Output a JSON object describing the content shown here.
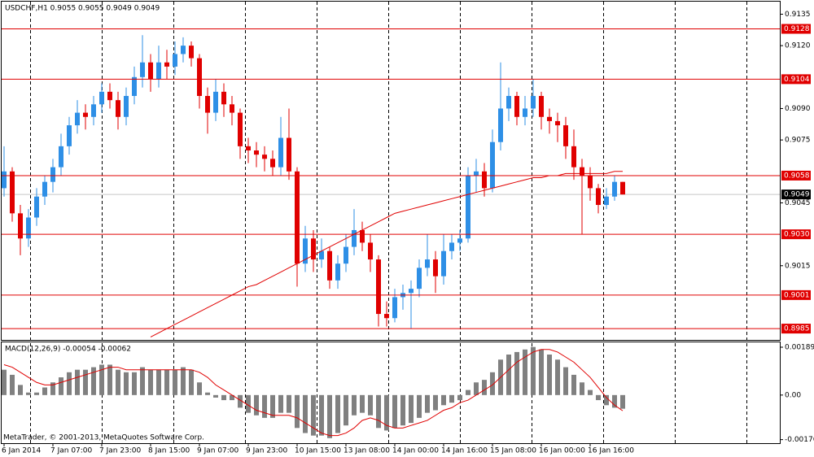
{
  "chart_data": [
    {
      "type": "candlestick",
      "title": "USDCHF,H1  0.9055 0.9055 0.9049 0.9049",
      "categories": [
        "6 Jan 2014",
        null,
        null,
        null,
        null,
        null,
        "7 Jan 07:00",
        null,
        null,
        null,
        null,
        null,
        "7 Jan 23:00",
        null,
        null,
        null,
        null,
        null,
        "8 Jan 15:00",
        null,
        null,
        null,
        null,
        null,
        "9 Jan 07:00",
        null,
        null,
        null,
        null,
        null,
        "9 Jan 23:00",
        null,
        null,
        null,
        null,
        null,
        "10 Jan 15:00",
        null,
        null,
        null,
        null,
        null,
        "13 Jan 08:00",
        null,
        null,
        null,
        null,
        null,
        "14 Jan 00:00",
        null,
        null,
        null,
        null,
        null,
        "14 Jan 16:00",
        null,
        null,
        null,
        null,
        null,
        "15 Jan 08:00",
        null,
        null,
        null,
        null,
        null,
        "16 Jan 00:00",
        null,
        null,
        null,
        null,
        null,
        "16 Jan 16:00",
        null,
        null,
        null,
        null
      ],
      "candles": [
        [
          0.9052,
          0.9072,
          0.9048,
          0.906
        ],
        [
          0.906,
          0.9062,
          0.9036,
          0.904
        ],
        [
          0.904,
          0.9044,
          0.902,
          0.9028
        ],
        [
          0.9028,
          0.9042,
          0.9024,
          0.9038
        ],
        [
          0.9038,
          0.9052,
          0.9034,
          0.9048
        ],
        [
          0.9048,
          0.9058,
          0.9044,
          0.9055
        ],
        [
          0.9055,
          0.9066,
          0.905,
          0.9062
        ],
        [
          0.9062,
          0.9078,
          0.9058,
          0.9072
        ],
        [
          0.9072,
          0.9086,
          0.9068,
          0.9082
        ],
        [
          0.9082,
          0.9094,
          0.9078,
          0.9088
        ],
        [
          0.9088,
          0.9092,
          0.908,
          0.9086
        ],
        [
          0.9086,
          0.9096,
          0.9082,
          0.9092
        ],
        [
          0.9092,
          0.9102,
          0.9088,
          0.9098
        ],
        [
          0.9098,
          0.9102,
          0.909,
          0.9094
        ],
        [
          0.9094,
          0.9098,
          0.908,
          0.9086
        ],
        [
          0.9086,
          0.91,
          0.9082,
          0.9096
        ],
        [
          0.9096,
          0.911,
          0.9092,
          0.9105
        ],
        [
          0.9105,
          0.9125,
          0.91,
          0.9112
        ],
        [
          0.9112,
          0.9116,
          0.9098,
          0.9104
        ],
        [
          0.9104,
          0.912,
          0.91,
          0.9112
        ],
        [
          0.9112,
          0.9118,
          0.9104,
          0.911
        ],
        [
          0.911,
          0.9122,
          0.9106,
          0.9116
        ],
        [
          0.9116,
          0.9124,
          0.9112,
          0.912
        ],
        [
          0.912,
          0.9122,
          0.911,
          0.9114
        ],
        [
          0.9114,
          0.9116,
          0.909,
          0.9096
        ],
        [
          0.9096,
          0.91,
          0.9078,
          0.9088
        ],
        [
          0.9088,
          0.9104,
          0.9084,
          0.9098
        ],
        [
          0.9098,
          0.9102,
          0.9086,
          0.9092
        ],
        [
          0.9092,
          0.9096,
          0.9082,
          0.9088
        ],
        [
          0.9088,
          0.909,
          0.9066,
          0.9072
        ],
        [
          0.9072,
          0.9076,
          0.9064,
          0.907
        ],
        [
          0.907,
          0.9074,
          0.9062,
          0.9068
        ],
        [
          0.9068,
          0.9072,
          0.906,
          0.9066
        ],
        [
          0.9066,
          0.907,
          0.9058,
          0.9062
        ],
        [
          0.9062,
          0.9086,
          0.9058,
          0.9076
        ],
        [
          0.9076,
          0.909,
          0.9056,
          0.906
        ],
        [
          0.906,
          0.9062,
          0.9005,
          0.9016
        ],
        [
          0.9016,
          0.9034,
          0.9012,
          0.9028
        ],
        [
          0.9028,
          0.9032,
          0.9012,
          0.9018
        ],
        [
          0.9018,
          0.9028,
          0.9014,
          0.9022
        ],
        [
          0.9022,
          0.9024,
          0.9004,
          0.9008
        ],
        [
          0.9008,
          0.902,
          0.9004,
          0.9016
        ],
        [
          0.9016,
          0.903,
          0.9012,
          0.9024
        ],
        [
          0.9024,
          0.9042,
          0.902,
          0.9032
        ],
        [
          0.9032,
          0.9036,
          0.9022,
          0.9026
        ],
        [
          0.9026,
          0.903,
          0.9012,
          0.9018
        ],
        [
          0.9018,
          0.902,
          0.8986,
          0.8992
        ],
        [
          0.8992,
          0.8998,
          0.8986,
          0.899
        ],
        [
          0.899,
          0.9004,
          0.8988,
          0.9
        ],
        [
          0.9,
          0.9006,
          0.8994,
          0.9002
        ],
        [
          0.9002,
          0.9008,
          0.8985,
          0.9004
        ],
        [
          0.9004,
          0.9018,
          0.9,
          0.9014
        ],
        [
          0.9014,
          0.903,
          0.901,
          0.9018
        ],
        [
          0.9018,
          0.9022,
          0.9002,
          0.901
        ],
        [
          0.901,
          0.903,
          0.9006,
          0.9022
        ],
        [
          0.9022,
          0.903,
          0.9018,
          0.9026
        ],
        [
          0.9026,
          0.9032,
          0.9022,
          0.9028
        ],
        [
          0.9028,
          0.9062,
          0.9026,
          0.9058
        ],
        [
          0.9058,
          0.9066,
          0.905,
          0.906
        ],
        [
          0.906,
          0.9064,
          0.9048,
          0.9052
        ],
        [
          0.9052,
          0.908,
          0.905,
          0.9074
        ],
        [
          0.9074,
          0.9112,
          0.907,
          0.909
        ],
        [
          0.909,
          0.91,
          0.9084,
          0.9096
        ],
        [
          0.9096,
          0.9098,
          0.9082,
          0.9086
        ],
        [
          0.9086,
          0.9096,
          0.9082,
          0.909
        ],
        [
          0.909,
          0.9104,
          0.9086,
          0.9096
        ],
        [
          0.9096,
          0.9098,
          0.908,
          0.9086
        ],
        [
          0.9086,
          0.909,
          0.9078,
          0.9084
        ],
        [
          0.9084,
          0.9088,
          0.9074,
          0.9082
        ],
        [
          0.9082,
          0.9086,
          0.9066,
          0.9072
        ],
        [
          0.9072,
          0.908,
          0.9056,
          0.9062
        ],
        [
          0.9062,
          0.9066,
          0.903,
          0.9058
        ],
        [
          0.9058,
          0.9062,
          0.9046,
          0.9052
        ],
        [
          0.9052,
          0.9054,
          0.904,
          0.9044
        ],
        [
          0.9044,
          0.9052,
          0.9042,
          0.9048
        ],
        [
          0.9048,
          0.9058,
          0.9046,
          0.9055
        ],
        [
          0.9055,
          0.9055,
          0.9049,
          0.9049
        ]
      ],
      "up_color": "#2e8fe6",
      "down_color": "#e00000",
      "ma": {
        "color": "#e00000",
        "values": [
          null,
          null,
          null,
          null,
          null,
          null,
          null,
          null,
          null,
          null,
          null,
          null,
          null,
          null,
          null,
          null,
          null,
          null,
          0.8981,
          0.8983,
          0.8985,
          0.8987,
          0.8989,
          0.8991,
          0.8993,
          0.8995,
          0.8997,
          0.8999,
          0.9001,
          0.9003,
          0.9005,
          0.9006,
          0.9008,
          0.901,
          0.9012,
          0.9014,
          0.9016,
          0.9018,
          0.902,
          0.9022,
          0.9024,
          0.9026,
          0.9028,
          0.903,
          0.9032,
          0.9034,
          0.9036,
          0.9038,
          0.904,
          0.9041,
          0.9042,
          0.9043,
          0.9044,
          0.9045,
          0.9046,
          0.9047,
          0.9048,
          0.9049,
          0.905,
          0.9051,
          0.9052,
          0.9053,
          0.9054,
          0.9055,
          0.9056,
          0.9057,
          0.9057,
          0.9058,
          0.9058,
          0.9059,
          0.9059,
          0.9059,
          0.9059,
          0.9059,
          0.9059,
          0.906,
          0.906
        ]
      },
      "ylim": [
        0.898,
        0.9141
      ],
      "yticks": [
        0.9135,
        {
          "value": 0.912,
          "label": "0.9120"
        },
        {
          "value": 0.909,
          "label": "0.9090"
        },
        0.9075,
        0.9045,
        0.9015
      ],
      "levels": [
        0.9128,
        0.9104,
        0.9058,
        {
          "value": 0.903,
          "label": "0.9030"
        },
        0.9001,
        0.8985
      ],
      "level_color": "#e00000",
      "last_price": 0.9049
    },
    {
      "type": "macd",
      "title": "MACD(12,26,9) -0.00054 -0.00062",
      "footer": "MetaTrader, © 2001-2013, MetaQuotes Software Corp.",
      "color": "#808080",
      "values": [
        0.001,
        0.0008,
        0.0004,
        0.0001,
        0.0001,
        0.0003,
        0.0005,
        0.0007,
        0.0009,
        0.001,
        0.001,
        0.0011,
        0.0012,
        0.0012,
        0.001,
        0.0009,
        0.0009,
        0.0011,
        0.001,
        0.001,
        0.001,
        0.001,
        0.0011,
        0.001,
        0.0005,
        0.0001,
        -0.0001,
        -0.0002,
        -0.0002,
        -0.0005,
        -0.0007,
        -0.0008,
        -0.0009,
        -0.0009,
        -0.0007,
        -0.0007,
        -0.0013,
        -0.0015,
        -0.0016,
        -0.0016,
        -0.0017,
        -0.0015,
        -0.0012,
        -0.0008,
        -0.0007,
        -0.0008,
        -0.0013,
        -0.0014,
        -0.0013,
        -0.0012,
        -0.0011,
        -0.0009,
        -0.0007,
        -0.0006,
        -0.0004,
        -0.0003,
        -0.0002,
        0.0002,
        0.0005,
        0.0006,
        0.0009,
        0.0014,
        0.0016,
        0.0017,
        0.0018,
        0.0019,
        0.0018,
        0.0016,
        0.0014,
        0.0011,
        0.0008,
        0.0005,
        0.0002,
        -0.0002,
        -0.0004,
        -0.0005,
        -0.00054
      ],
      "signal": {
        "color": "#e00000",
        "values": [
          0.0012,
          0.0011,
          0.0009,
          0.0007,
          0.0005,
          0.0004,
          0.0004,
          0.0005,
          0.0006,
          0.0007,
          0.0008,
          0.0009,
          0.001,
          0.0011,
          0.0011,
          0.001,
          0.001,
          0.001,
          0.001,
          0.001,
          0.001,
          0.001,
          0.001,
          0.001,
          0.0009,
          0.0007,
          0.0004,
          0.0002,
          0.0,
          -0.0002,
          -0.0004,
          -0.0006,
          -0.0007,
          -0.0008,
          -0.0008,
          -0.0008,
          -0.0009,
          -0.0011,
          -0.0013,
          -0.0015,
          -0.0016,
          -0.0016,
          -0.0015,
          -0.0013,
          -0.001,
          -0.0009,
          -0.001,
          -0.0012,
          -0.0013,
          -0.0013,
          -0.0012,
          -0.0011,
          -0.001,
          -0.0008,
          -0.0006,
          -0.0005,
          -0.0003,
          -0.0002,
          0.0,
          0.0002,
          0.0004,
          0.0007,
          0.001,
          0.0013,
          0.0015,
          0.0017,
          0.0018,
          0.0018,
          0.0017,
          0.0015,
          0.0013,
          0.001,
          0.0007,
          0.0003,
          -0.0001,
          -0.0004,
          -0.00062
        ]
      },
      "ylim": [
        -0.0019,
        0.00205
      ],
      "yticks": [
        0.00189,
        {
          "value": 0,
          "label": "0.00"
        },
        -0.00176
      ]
    }
  ]
}
